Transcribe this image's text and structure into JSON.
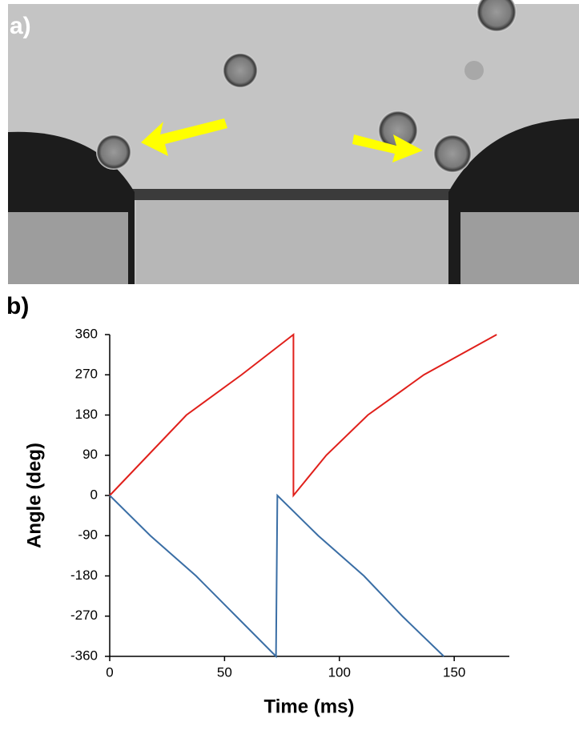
{
  "panel_labels": [
    "a)",
    "b)"
  ],
  "chart_data": {
    "type": "line",
    "xlabel": "Time (ms)",
    "ylabel": "Angle (deg)",
    "xlim": [
      0,
      174
    ],
    "xticks": [
      0,
      50,
      100,
      150
    ],
    "ylim": [
      -360,
      360
    ],
    "yticks": [
      -360,
      -270,
      -180,
      -90,
      0,
      90,
      180,
      270,
      360
    ],
    "series": [
      {
        "color": "#e0201b",
        "x": [
          0,
          16.7,
          33.4,
          57.4,
          80,
          80,
          94.3,
          112.4,
          136.8,
          168.5
        ],
        "values": [
          0,
          90,
          180,
          270,
          360,
          0,
          90,
          180,
          270,
          360
        ]
      },
      {
        "color": "#3a6ea5",
        "x": [
          0,
          17.7,
          37.6,
          55,
          72.4,
          73,
          90.8,
          110.7,
          127.4,
          145.5
        ],
        "values": [
          0,
          -90,
          -180,
          -270,
          -360,
          0,
          -90,
          -180,
          -270,
          -360
        ]
      }
    ]
  }
}
